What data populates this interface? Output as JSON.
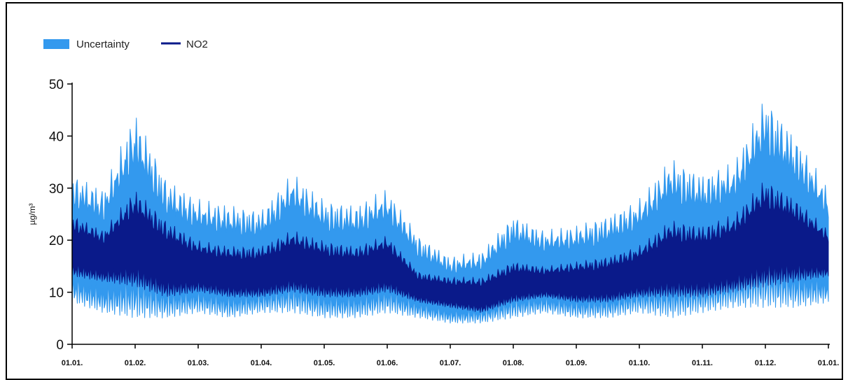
{
  "chart_data": {
    "type": "area",
    "title": "",
    "xlabel": "",
    "ylabel": "µg/m³",
    "ylim": [
      0,
      50
    ],
    "yticks": [
      "0",
      "10",
      "20",
      "30",
      "40",
      "50"
    ],
    "x_tick_labels": [
      "01.01.",
      "01.02.",
      "01.03.",
      "01.04.",
      "01.05.",
      "01.06.",
      "01.07.",
      "01.08.",
      "01.09.",
      "01.10.",
      "01.11.",
      "01.12.",
      "01.01."
    ],
    "legend": {
      "placement": "top-left"
    },
    "grid": false,
    "colors": {
      "uncertainty": "#3399ee",
      "no2": "#0a1a8a"
    },
    "series": [
      {
        "name": "Uncertainty",
        "kind": "band",
        "x_month": [
          0,
          0.5,
          1.0,
          1.5,
          2.0,
          2.5,
          3.0,
          3.5,
          4.0,
          4.5,
          5.0,
          5.5,
          6.0,
          6.5,
          7.0,
          7.5,
          8.0,
          8.5,
          9.0,
          9.5,
          10.0,
          10.5,
          11.0,
          11.5,
          12.0
        ],
        "upper": [
          33,
          30,
          45,
          32,
          28,
          27,
          26,
          33,
          28,
          27,
          30,
          21,
          17,
          18,
          25,
          22,
          23,
          25,
          28,
          36,
          33,
          35,
          48,
          40,
          30
        ],
        "lower": [
          8,
          6,
          5,
          5,
          6,
          5,
          6,
          6,
          5,
          5,
          6,
          5,
          4,
          4,
          5,
          6,
          5,
          5,
          6,
          5,
          6,
          7,
          7,
          7,
          8
        ]
      },
      {
        "name": "NO2",
        "kind": "line",
        "x_month": [
          0,
          0.5,
          1.0,
          1.5,
          2.0,
          2.5,
          3.0,
          3.5,
          4.0,
          4.5,
          5.0,
          5.5,
          6.0,
          6.5,
          7.0,
          7.5,
          8.0,
          8.5,
          9.0,
          9.5,
          10.0,
          10.5,
          11.0,
          11.5,
          12.0
        ],
        "upper": [
          25,
          22,
          30,
          24,
          20,
          19,
          19,
          22,
          20,
          19,
          21,
          14,
          13,
          13,
          16,
          15,
          16,
          17,
          19,
          24,
          23,
          25,
          32,
          28,
          22
        ],
        "lower": [
          13,
          12,
          11,
          9,
          10,
          9,
          9,
          10,
          9,
          9,
          10,
          8,
          7,
          6,
          8,
          9,
          8,
          8,
          9,
          9,
          9,
          10,
          11,
          12,
          13
        ]
      }
    ]
  },
  "legend_labels": {
    "uncertainty": "Uncertainty",
    "no2": "NO2"
  }
}
